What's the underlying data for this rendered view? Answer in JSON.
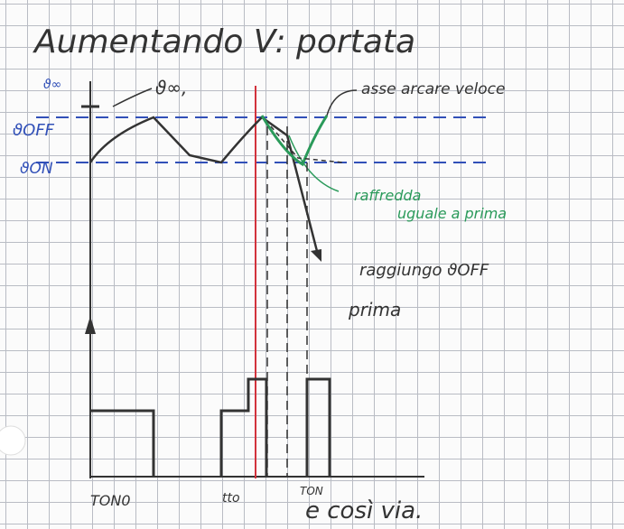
{
  "header": {
    "title": "Aumentando V: portata"
  },
  "labels": {
    "axis_top": "ϑ∞",
    "theta_inf": "ϑ∞,",
    "theta_off": "ϑOFF",
    "theta_on": "ϑON",
    "note_fast": "asse arcare veloce",
    "note_green": [
      "raffredda",
      "uguale a prima"
    ],
    "note_reach": [
      "raggiungo ϑOFF",
      "prima"
    ],
    "x_start": "TON0",
    "x_mid": "tto",
    "x_on": "TON",
    "footer": "e così via."
  }
}
